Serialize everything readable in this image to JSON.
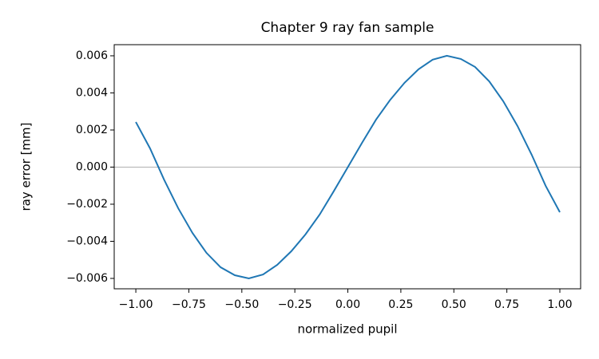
{
  "chart_data": {
    "type": "line",
    "title": "Chapter 9 ray fan sample",
    "xlabel": "normalized pupil",
    "ylabel": "ray error [mm]",
    "x": [
      -1.0,
      -0.933,
      -0.867,
      -0.8,
      -0.733,
      -0.667,
      -0.6,
      -0.533,
      -0.467,
      -0.4,
      -0.333,
      -0.267,
      -0.2,
      -0.133,
      -0.067,
      0.0,
      0.067,
      0.133,
      0.2,
      0.267,
      0.333,
      0.4,
      0.467,
      0.533,
      0.6,
      0.667,
      0.733,
      0.8,
      0.867,
      0.933,
      1.0
    ],
    "series": [
      {
        "color": "#1f77b4",
        "values": [
          0.00243,
          0.00101,
          -0.00067,
          -0.00222,
          -0.00355,
          -0.00462,
          -0.0054,
          -0.00583,
          -0.006,
          -0.00579,
          -0.00527,
          -0.00454,
          -0.00363,
          -0.00256,
          -0.00131,
          0.0,
          0.00131,
          0.00256,
          0.00363,
          0.00454,
          0.00527,
          0.00579,
          0.006,
          0.00583,
          0.0054,
          0.00462,
          0.00355,
          0.00222,
          0.00067,
          -0.00101,
          -0.00243
        ]
      }
    ],
    "hline": 0,
    "hline_color": "#b0b0b0",
    "xlim": [
      -1.102,
      1.098
    ],
    "ylim": [
      -0.00656,
      0.0066
    ],
    "xticks": [
      {
        "value": -1,
        "label": "−1.00"
      },
      {
        "value": -0.75,
        "label": "−0.75"
      },
      {
        "value": -0.5,
        "label": "−0.50"
      },
      {
        "value": -0.25,
        "label": "−0.25"
      },
      {
        "value": 0,
        "label": "0.00"
      },
      {
        "value": 0.25,
        "label": "0.25"
      },
      {
        "value": 0.5,
        "label": "0.50"
      },
      {
        "value": 0.75,
        "label": "0.75"
      },
      {
        "value": 1,
        "label": "1.00"
      }
    ],
    "yticks": [
      {
        "value": -0.006,
        "label": "−0.006"
      },
      {
        "value": -0.004,
        "label": "−0.004"
      },
      {
        "value": -0.002,
        "label": "−0.002"
      },
      {
        "value": 0,
        "label": "0.000"
      },
      {
        "value": 0.002,
        "label": "0.002"
      },
      {
        "value": 0.004,
        "label": "0.004"
      },
      {
        "value": 0.006,
        "label": "0.006"
      }
    ]
  }
}
